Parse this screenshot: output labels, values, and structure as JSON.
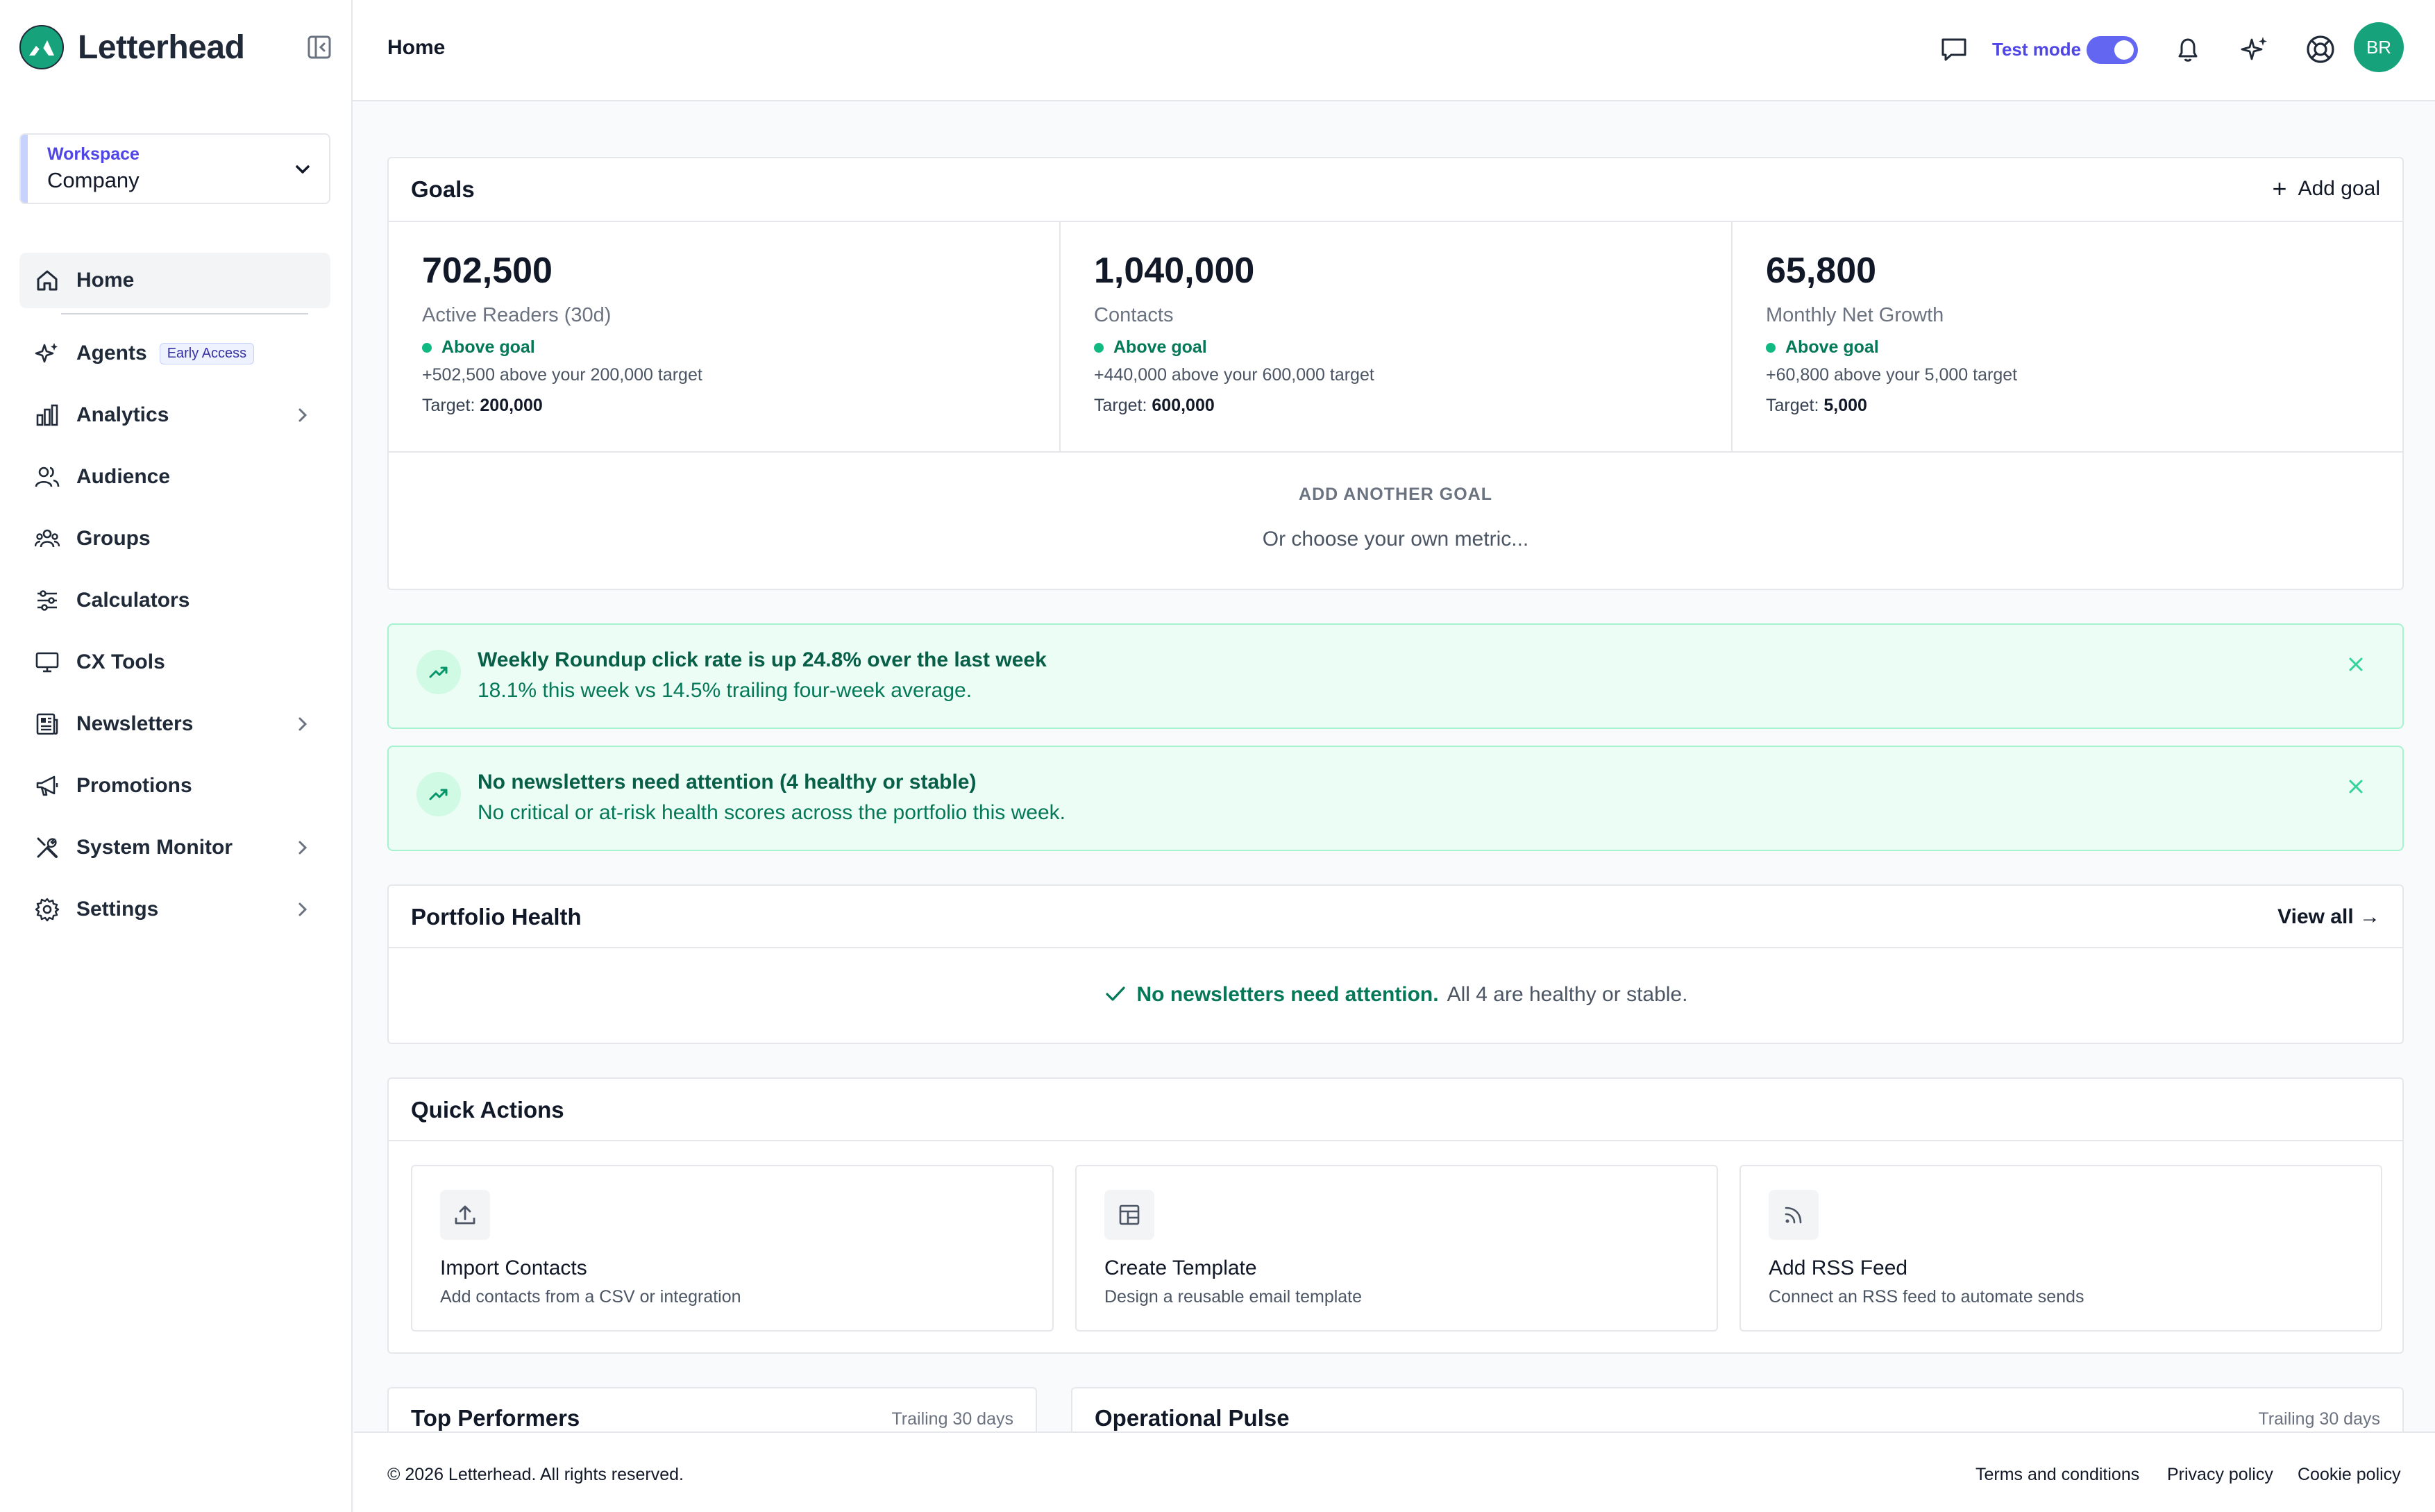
{
  "brand": {
    "name": "Letterhead",
    "color": "#16a37b"
  },
  "workspace": {
    "label": "Workspace",
    "value": "Company"
  },
  "nav": [
    {
      "label": "Home",
      "icon": "home-icon"
    },
    {
      "label": "Agents",
      "badge": "Early Access",
      "icon": "sparkle-icon"
    },
    {
      "label": "Analytics",
      "icon": "bar-chart-icon"
    },
    {
      "label": "Audience",
      "icon": "users-icon"
    },
    {
      "label": "Groups",
      "icon": "group-icon"
    },
    {
      "label": "Calculators",
      "icon": "sliders-icon"
    },
    {
      "label": "CX Tools",
      "icon": "monitor-icon"
    },
    {
      "label": "Newsletters",
      "icon": "newspaper-icon"
    },
    {
      "label": "Promotions",
      "icon": "megaphone-icon"
    },
    {
      "label": "System Monitor",
      "icon": "tools-icon"
    },
    {
      "label": "Settings",
      "icon": "gear-icon"
    }
  ],
  "topbar": {
    "title": "Home",
    "test_mode_label": "Test mode",
    "test_mode_on": true,
    "avatar_initials": "BR"
  },
  "goals": {
    "title": "Goals",
    "add_label": "Add goal",
    "items": [
      {
        "value": "702,500",
        "label": "Active Readers (30d)",
        "status": "Above goal",
        "diff": "+502,500 above your 200,000 target",
        "target_label": "Target:",
        "target": "200,000"
      },
      {
        "value": "1,040,000",
        "label": "Contacts",
        "status": "Above goal",
        "diff": "+440,000 above your 600,000 target",
        "target_label": "Target:",
        "target": "600,000"
      },
      {
        "value": "65,800",
        "label": "Monthly Net Growth",
        "status": "Above goal",
        "diff": "+60,800 above your 5,000 target",
        "target_label": "Target:",
        "target": "5,000"
      }
    ],
    "another_label": "ADD ANOTHER GOAL",
    "another_sub": "Or choose your own metric..."
  },
  "alerts": [
    {
      "title": "Weekly Roundup click rate is up 24.8% over the last week",
      "sub": "18.1% this week vs 14.5% trailing four-week average."
    },
    {
      "title": "No newsletters need attention (4 healthy or stable)",
      "sub": "No critical or at-risk health scores across the portfolio this week."
    }
  ],
  "portfolio": {
    "title": "Portfolio Health",
    "view_all": "View all →",
    "ok": "No newsletters need attention.",
    "rest": "All 4 are healthy or stable."
  },
  "quick_actions": {
    "title": "Quick Actions",
    "items": [
      {
        "title": "Import Contacts",
        "sub": "Add contacts from a CSV or integration",
        "icon": "upload-icon"
      },
      {
        "title": "Create Template",
        "sub": "Design a reusable email template",
        "icon": "template-icon"
      },
      {
        "title": "Add RSS Feed",
        "sub": "Connect an RSS feed to automate sends",
        "icon": "rss-icon"
      }
    ]
  },
  "top_performers": {
    "title": "Top Performers",
    "meta": "Trailing 30 days"
  },
  "operational_pulse": {
    "title": "Operational Pulse",
    "meta": "Trailing 30 days"
  },
  "footer": {
    "copyright": "© 2026 Letterhead. All rights reserved.",
    "terms": "Terms and conditions",
    "privacy": "Privacy policy",
    "cookie": "Cookie policy"
  }
}
